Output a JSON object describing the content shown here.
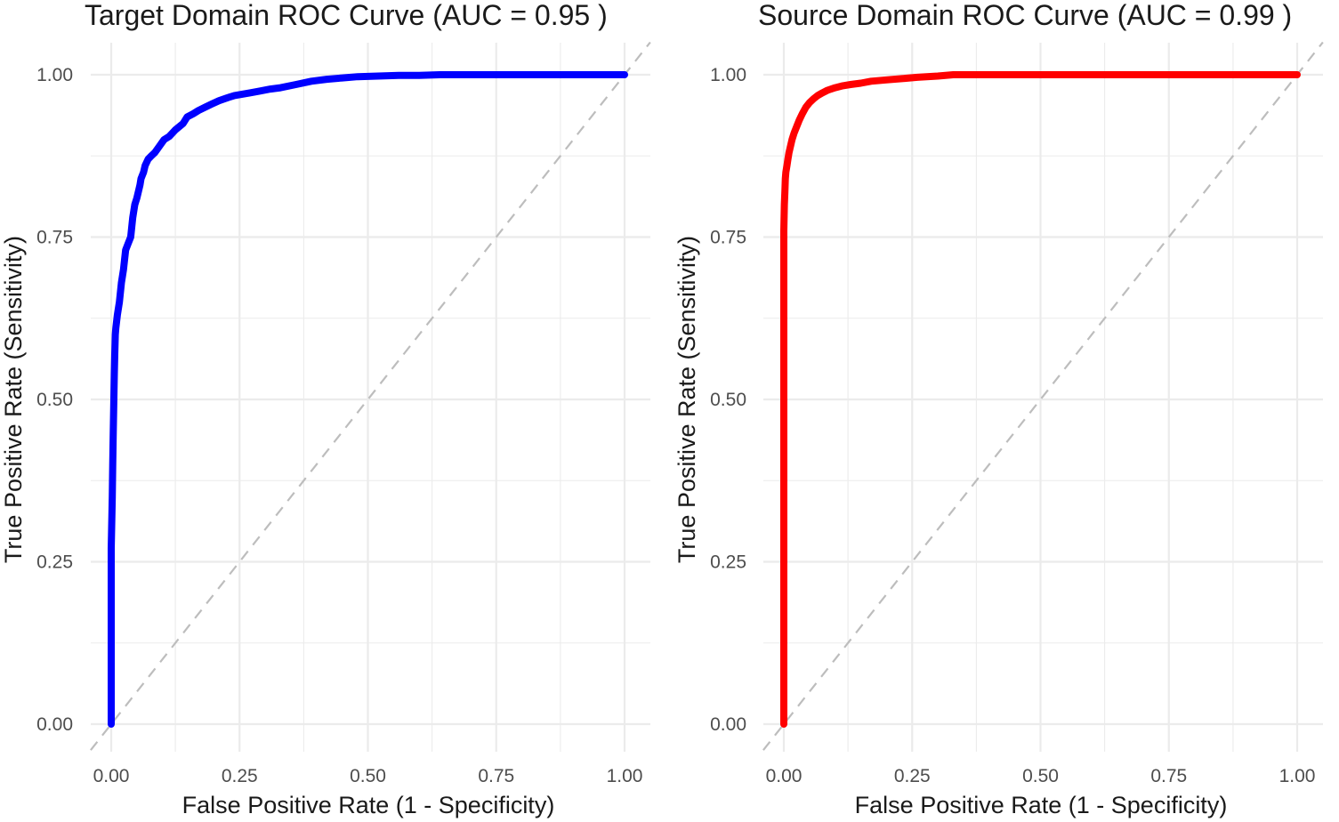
{
  "chart_data": [
    {
      "type": "line",
      "title": "Target Domain ROC Curve (AUC = 0.95 )",
      "xlabel": "False Positive Rate (1 - Specificity)",
      "ylabel": "True Positive Rate (Sensitivity)",
      "xlim": [
        -0.04,
        1.05
      ],
      "ylim": [
        -0.04,
        1.05
      ],
      "xticks": [
        "0.00",
        "0.25",
        "0.50",
        "0.75",
        "1.00"
      ],
      "yticks": [
        "0.00",
        "0.25",
        "0.50",
        "0.75",
        "1.00"
      ],
      "grid": true,
      "reference_line": {
        "name": "chance",
        "style": "dashed",
        "color": "#bdbdbd"
      },
      "series": [
        {
          "name": "Target Domain",
          "color": "#0000ff",
          "x": [
            0.0,
            0.0,
            0.002,
            0.003,
            0.004,
            0.006,
            0.007,
            0.008,
            0.009,
            0.012,
            0.016,
            0.02,
            0.024,
            0.028,
            0.033,
            0.038,
            0.042,
            0.046,
            0.05,
            0.056,
            0.058,
            0.063,
            0.066,
            0.072,
            0.078,
            0.085,
            0.094,
            0.103,
            0.113,
            0.125,
            0.14,
            0.148,
            0.16,
            0.17,
            0.183,
            0.196,
            0.21,
            0.228,
            0.24,
            0.255,
            0.27,
            0.29,
            0.31,
            0.33,
            0.36,
            0.39,
            0.42,
            0.45,
            0.48,
            0.52,
            0.56,
            0.6,
            0.64,
            0.7,
            0.8,
            0.9,
            1.0
          ],
          "y": [
            0.0,
            0.27,
            0.35,
            0.4,
            0.45,
            0.54,
            0.57,
            0.6,
            0.61,
            0.63,
            0.65,
            0.68,
            0.7,
            0.73,
            0.74,
            0.75,
            0.78,
            0.8,
            0.81,
            0.83,
            0.84,
            0.85,
            0.86,
            0.87,
            0.875,
            0.88,
            0.89,
            0.9,
            0.905,
            0.915,
            0.925,
            0.935,
            0.94,
            0.945,
            0.95,
            0.955,
            0.96,
            0.965,
            0.968,
            0.97,
            0.972,
            0.975,
            0.978,
            0.98,
            0.985,
            0.99,
            0.993,
            0.995,
            0.997,
            0.998,
            0.999,
            0.999,
            1.0,
            1.0,
            1.0,
            1.0,
            1.0
          ]
        }
      ]
    },
    {
      "type": "line",
      "title": "Source Domain ROC Curve (AUC = 0.99 )",
      "xlabel": "False Positive Rate (1 - Specificity)",
      "ylabel": "True Positive Rate (Sensitivity)",
      "xlim": [
        -0.04,
        1.05
      ],
      "ylim": [
        -0.04,
        1.05
      ],
      "xticks": [
        "0.00",
        "0.25",
        "0.50",
        "0.75",
        "1.00"
      ],
      "yticks": [
        "0.00",
        "0.25",
        "0.50",
        "0.75",
        "1.00"
      ],
      "grid": true,
      "reference_line": {
        "name": "chance",
        "style": "dashed",
        "color": "#bdbdbd"
      },
      "series": [
        {
          "name": "Source Domain",
          "color": "#ff0000",
          "x": [
            0.0,
            0.0,
            0.001,
            0.002,
            0.003,
            0.004,
            0.006,
            0.008,
            0.01,
            0.013,
            0.016,
            0.02,
            0.025,
            0.03,
            0.036,
            0.043,
            0.05,
            0.058,
            0.066,
            0.075,
            0.085,
            0.1,
            0.115,
            0.13,
            0.15,
            0.17,
            0.2,
            0.23,
            0.26,
            0.3,
            0.33,
            0.4,
            0.5,
            0.6,
            0.7,
            0.8,
            0.9,
            1.0
          ],
          "y": [
            0.0,
            0.76,
            0.8,
            0.82,
            0.84,
            0.85,
            0.86,
            0.87,
            0.88,
            0.89,
            0.9,
            0.91,
            0.92,
            0.93,
            0.94,
            0.95,
            0.957,
            0.963,
            0.968,
            0.972,
            0.976,
            0.98,
            0.983,
            0.985,
            0.987,
            0.99,
            0.992,
            0.994,
            0.996,
            0.998,
            1.0,
            1.0,
            1.0,
            1.0,
            1.0,
            1.0,
            1.0,
            1.0
          ]
        }
      ]
    }
  ]
}
